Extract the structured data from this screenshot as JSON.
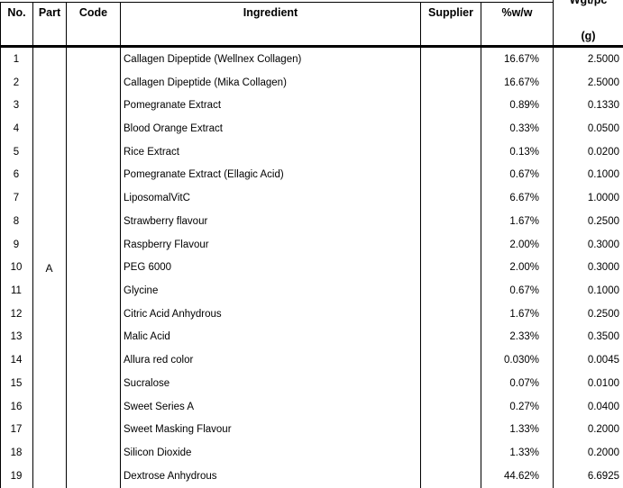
{
  "table": {
    "headers": {
      "no": "No.",
      "part": "Part",
      "code": "Code",
      "ingredient": "Ingredient",
      "supplier": "Supplier",
      "pww": "%w/w",
      "wgt_line1": "Wgt/pc",
      "wgt_line2": "(g)"
    },
    "part_merged_value": "A",
    "code_merged_value": "",
    "supplier_merged_value": "",
    "rows": [
      {
        "no": "1",
        "ingredient": "Callagen Dipeptide (Wellnex Collagen)",
        "pww": "16.67%",
        "wgt": "2.5000"
      },
      {
        "no": "2",
        "ingredient": "Callagen Dipeptide (Mika Collagen)",
        "pww": "16.67%",
        "wgt": "2.5000"
      },
      {
        "no": "3",
        "ingredient": "Pomegranate Extract",
        "pww": "0.89%",
        "wgt": "0.1330"
      },
      {
        "no": "4",
        "ingredient": "Blood Orange Extract",
        "pww": "0.33%",
        "wgt": "0.0500"
      },
      {
        "no": "5",
        "ingredient": "Rice Extract",
        "pww": "0.13%",
        "wgt": "0.0200"
      },
      {
        "no": "6",
        "ingredient": "Pomegranate Extract (Ellagic Acid)",
        "pww": "0.67%",
        "wgt": "0.1000"
      },
      {
        "no": "7",
        "ingredient": "LiposomalVitC",
        "pww": "6.67%",
        "wgt": "1.0000"
      },
      {
        "no": "8",
        "ingredient": "Strawberry flavour",
        "pww": "1.67%",
        "wgt": "0.2500"
      },
      {
        "no": "9",
        "ingredient": "Raspberry Flavour",
        "pww": "2.00%",
        "wgt": "0.3000"
      },
      {
        "no": "10",
        "ingredient": "PEG 6000",
        "pww": "2.00%",
        "wgt": "0.3000"
      },
      {
        "no": "11",
        "ingredient": "Glycine",
        "pww": "0.67%",
        "wgt": "0.1000"
      },
      {
        "no": "12",
        "ingredient": "Citric Acid Anhydrous",
        "pww": "1.67%",
        "wgt": "0.2500"
      },
      {
        "no": "13",
        "ingredient": "Malic Acid",
        "pww": "2.33%",
        "wgt": "0.3500"
      },
      {
        "no": "14",
        "ingredient": "Allura red color",
        "pww": "0.030%",
        "wgt": "0.0045"
      },
      {
        "no": "15",
        "ingredient": "Sucralose",
        "pww": "0.07%",
        "wgt": "0.0100"
      },
      {
        "no": "16",
        "ingredient": "Sweet Series A",
        "pww": "0.27%",
        "wgt": "0.0400"
      },
      {
        "no": "17",
        "ingredient": "Sweet Masking Flavour",
        "pww": "1.33%",
        "wgt": "0.2000"
      },
      {
        "no": "18",
        "ingredient": "Silicon Dioxide",
        "pww": "1.33%",
        "wgt": "0.2000"
      },
      {
        "no": "19",
        "ingredient": "Dextrose Anhydrous",
        "pww": "44.62%",
        "wgt": "6.6925"
      }
    ]
  }
}
